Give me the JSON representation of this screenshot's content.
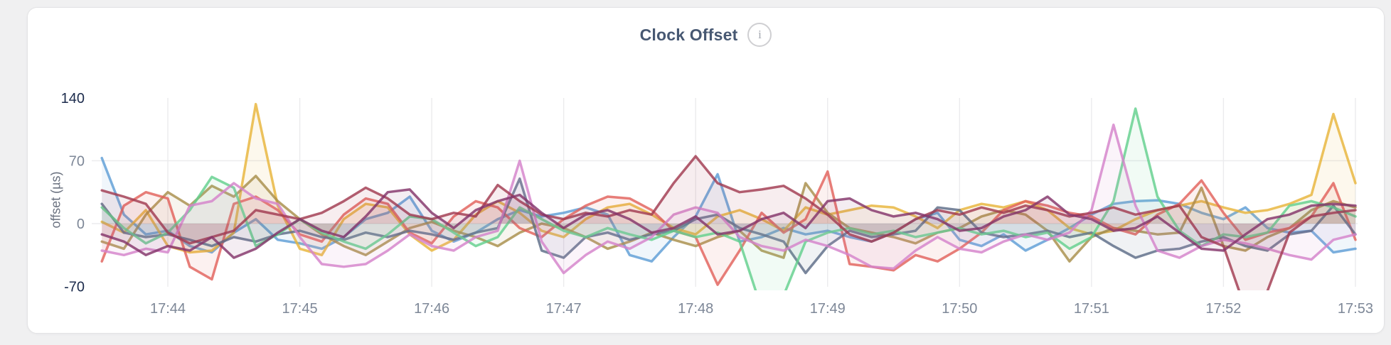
{
  "page": {
    "background": "#f0f0f1"
  },
  "header": {
    "title": "Clock Offset",
    "info_icon_glyph": "i"
  },
  "colors": {
    "title": "#475872",
    "tick_label": "#7d8797",
    "tick_label_extreme": "#1c2b4c",
    "gridline": "#ebebed",
    "card_background": "#ffffff"
  },
  "chart_data": {
    "type": "line",
    "title": "Clock Offset",
    "xlabel": "",
    "ylabel": "offset (µs)",
    "ylim": [
      -70,
      140
    ],
    "yticks": [
      140,
      70,
      0,
      -70
    ],
    "ytick_emphasized": [
      140,
      -70
    ],
    "grid": "on",
    "legend_position": "none",
    "x_tick_labels": [
      "17:44",
      "17:45",
      "17:46",
      "17:47",
      "17:48",
      "17:49",
      "17:50",
      "17:51",
      "17:52",
      "17:53"
    ],
    "sample_interval_seconds": 10,
    "first_tick_point_index": 3,
    "points_per_tick": 6,
    "area_fill_opacity": 0.09,
    "series": [
      {
        "name": "blue",
        "color": "#5e9dd5",
        "values": [
          73,
          10,
          -12,
          -8,
          -25,
          -32,
          -10,
          5,
          -18,
          -22,
          -28,
          -15,
          5,
          12,
          30,
          -8,
          -20,
          -10,
          5,
          15,
          8,
          12,
          18,
          10,
          -35,
          -42,
          -15,
          8,
          55,
          -20,
          -15,
          -5,
          -12,
          -8,
          -15,
          -20,
          -10,
          5,
          12,
          -18,
          -25,
          -12,
          -30,
          -18,
          -5,
          10,
          22,
          25,
          26,
          22,
          12,
          5,
          18,
          -5,
          -10,
          -8,
          -32,
          -28
        ]
      },
      {
        "name": "gold",
        "color": "#e8b53a",
        "values": [
          2,
          -10,
          15,
          -25,
          -32,
          -30,
          -10,
          133,
          20,
          -28,
          -35,
          5,
          22,
          18,
          -12,
          -30,
          -18,
          10,
          25,
          12,
          -8,
          -15,
          5,
          18,
          22,
          10,
          -5,
          -12,
          8,
          15,
          5,
          -8,
          18,
          10,
          15,
          20,
          18,
          8,
          -5,
          15,
          22,
          18,
          25,
          15,
          -5,
          -12,
          -8,
          5,
          15,
          20,
          25,
          18,
          12,
          15,
          22,
          32,
          122,
          45
        ]
      },
      {
        "name": "khaki",
        "color": "#a88f4a",
        "values": [
          -20,
          -28,
          10,
          35,
          20,
          42,
          30,
          53,
          25,
          5,
          -12,
          -25,
          -35,
          -20,
          -5,
          2,
          -8,
          -15,
          -25,
          -10,
          0,
          -5,
          -15,
          -28,
          -20,
          -10,
          -18,
          -25,
          -15,
          -8,
          -30,
          -38,
          45,
          12,
          -5,
          -10,
          -15,
          -22,
          -10,
          -5,
          8,
          15,
          10,
          -8,
          -42,
          -15,
          -5,
          -8,
          -12,
          -10,
          40,
          -25,
          -30,
          -15,
          -5,
          15,
          25,
          18
        ]
      },
      {
        "name": "salmon",
        "color": "#e2625c",
        "values": [
          -42,
          20,
          35,
          28,
          -48,
          -62,
          22,
          30,
          15,
          -12,
          -20,
          10,
          28,
          22,
          -10,
          -22,
          8,
          25,
          18,
          -5,
          -15,
          5,
          20,
          30,
          28,
          15,
          -8,
          -15,
          -68,
          -30,
          12,
          -10,
          5,
          58,
          -45,
          -48,
          -52,
          -35,
          -42,
          -28,
          -10,
          15,
          25,
          20,
          12,
          8,
          -5,
          -12,
          10,
          22,
          48,
          12,
          -18,
          -10,
          -5,
          8,
          45,
          -18
        ]
      },
      {
        "name": "slate",
        "color": "#5d6c87",
        "values": [
          22,
          -10,
          -15,
          -12,
          -18,
          -25,
          -15,
          -20,
          -12,
          -8,
          -15,
          -18,
          -10,
          -15,
          -8,
          -12,
          -18,
          -10,
          -5,
          50,
          -30,
          -38,
          -15,
          -10,
          -18,
          -12,
          -8,
          5,
          10,
          -5,
          -12,
          -20,
          -55,
          -25,
          -8,
          -15,
          -12,
          -8,
          18,
          15,
          -10,
          -15,
          -12,
          -8,
          -15,
          -10,
          -25,
          -38,
          -30,
          -28,
          -20,
          -15,
          -25,
          -30,
          -12,
          -8,
          20,
          -12
        ]
      },
      {
        "name": "emerald",
        "color": "#63d08e",
        "values": [
          18,
          -5,
          -22,
          -10,
          15,
          52,
          40,
          -25,
          -12,
          5,
          -10,
          -20,
          -28,
          -12,
          8,
          5,
          -10,
          -25,
          -15,
          18,
          5,
          -8,
          -15,
          -5,
          -12,
          -18,
          -8,
          -15,
          -10,
          -20,
          -95,
          -80,
          -20,
          -10,
          -5,
          -12,
          -8,
          -15,
          -10,
          -5,
          -12,
          -8,
          -15,
          -10,
          -28,
          -15,
          25,
          128,
          30,
          -8,
          -25,
          -12,
          -15,
          -10,
          20,
          25,
          18,
          8
        ]
      },
      {
        "name": "orchid",
        "color": "#d483ca",
        "values": [
          -30,
          -35,
          -28,
          -32,
          20,
          25,
          45,
          28,
          22,
          -15,
          -45,
          -48,
          -45,
          -30,
          -12,
          -25,
          -30,
          -15,
          -8,
          70,
          -20,
          -55,
          -35,
          -20,
          -28,
          -15,
          10,
          18,
          12,
          -15,
          -25,
          -30,
          -18,
          -25,
          -35,
          -48,
          -50,
          -30,
          -15,
          -28,
          -32,
          -20,
          -12,
          -18,
          -10,
          15,
          110,
          20,
          -30,
          -38,
          -25,
          -18,
          -22,
          -28,
          -35,
          -40,
          -18,
          -12
        ]
      },
      {
        "name": "maroon",
        "color": "#a13b51",
        "values": [
          37,
          30,
          22,
          -10,
          -22,
          -15,
          -8,
          15,
          10,
          5,
          12,
          25,
          40,
          28,
          10,
          5,
          12,
          8,
          43,
          25,
          10,
          5,
          12,
          8,
          15,
          10,
          45,
          75,
          45,
          35,
          38,
          42,
          28,
          10,
          -12,
          -20,
          -10,
          5,
          15,
          10,
          18,
          12,
          20,
          15,
          8,
          12,
          18,
          10,
          15,
          20,
          -15,
          -25,
          -95,
          -75,
          -10,
          8,
          12,
          15
        ]
      },
      {
        "name": "plum",
        "color": "#84356a",
        "values": [
          -12,
          -20,
          -35,
          -25,
          -30,
          -15,
          -38,
          -28,
          -10,
          5,
          -8,
          -15,
          8,
          35,
          38,
          12,
          -5,
          15,
          25,
          32,
          12,
          -5,
          10,
          15,
          5,
          -10,
          -5,
          8,
          -12,
          -8,
          5,
          12,
          -5,
          25,
          28,
          15,
          8,
          12,
          5,
          -8,
          -5,
          8,
          15,
          30,
          10,
          5,
          -8,
          -5,
          8,
          -10,
          -28,
          -30,
          -12,
          5,
          10,
          20,
          22,
          20
        ]
      }
    ]
  }
}
